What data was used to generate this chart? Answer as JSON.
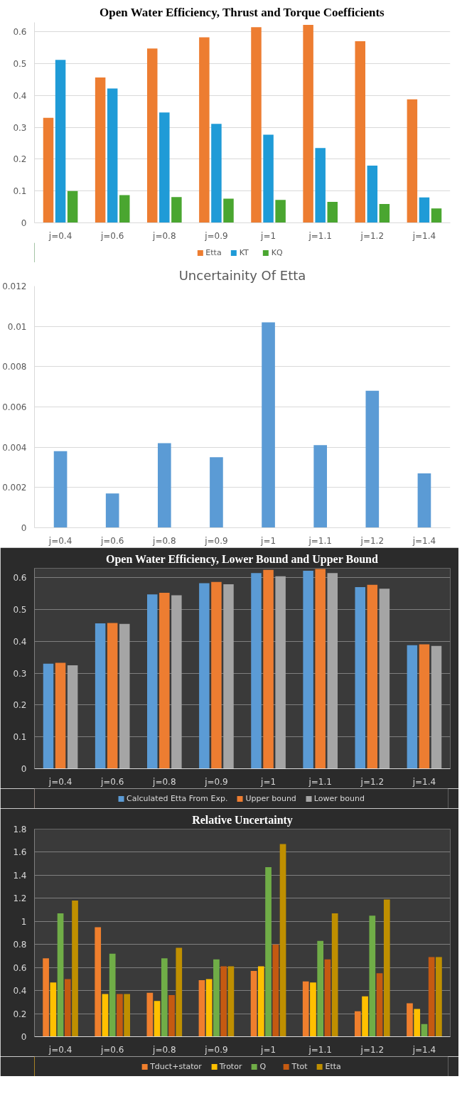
{
  "chart_data": [
    {
      "type": "bar",
      "title": "Open Water Efficiency, Thrust and Torque Coefficients",
      "categories": [
        "j=0.4",
        "j=0.6",
        "j=0.8",
        "j=0.9",
        "j=1",
        "j=1.1",
        "j=1.2",
        "j=1.4"
      ],
      "series": [
        {
          "name": "Etta",
          "color": "#ed7d31",
          "values": [
            0.33,
            0.457,
            0.548,
            0.583,
            0.615,
            0.622,
            0.571,
            0.388
          ]
        },
        {
          "name": "KT",
          "color": "#1f9bd7",
          "values": [
            0.512,
            0.422,
            0.347,
            0.311,
            0.277,
            0.235,
            0.18,
            0.08
          ]
        },
        {
          "name": "KQ",
          "color": "#4aa630",
          "values": [
            0.1,
            0.087,
            0.081,
            0.076,
            0.072,
            0.066,
            0.059,
            0.045
          ]
        }
      ],
      "ylim": [
        0,
        0.63
      ],
      "yticks": [
        0,
        0.1,
        0.2,
        0.3,
        0.4,
        0.5,
        0.6
      ],
      "grid": "y",
      "legend": "bottom"
    },
    {
      "type": "bar",
      "title": "Uncertainity Of Etta",
      "categories": [
        "j=0.4",
        "j=0.6",
        "j=0.8",
        "j=0.9",
        "j=1",
        "j=1.1",
        "j=1.2",
        "j=1.4"
      ],
      "series": [
        {
          "color": "#5b9bd5",
          "values": [
            0.0038,
            0.0017,
            0.0042,
            0.0035,
            0.0102,
            0.0041,
            0.0068,
            0.0027
          ]
        }
      ],
      "ylim": [
        0,
        0.012
      ],
      "yticks": [
        0,
        0.002,
        0.004,
        0.006,
        0.008,
        0.01,
        0.012
      ],
      "grid": "y"
    },
    {
      "type": "bar",
      "title": "Open Water Efficiency, Lower Bound and Upper Bound",
      "categories": [
        "j=0.4",
        "j=0.6",
        "j=0.8",
        "j=0.9",
        "j=1",
        "j=1.1",
        "j=1.2",
        "j=1.4"
      ],
      "series": [
        {
          "name": "Calculated Etta From Exp.",
          "color": "#5b9bd5",
          "values": [
            0.33,
            0.457,
            0.548,
            0.583,
            0.615,
            0.622,
            0.571,
            0.388
          ]
        },
        {
          "name": "Upper bound",
          "color": "#ed7d31",
          "values": [
            0.333,
            0.458,
            0.553,
            0.587,
            0.625,
            0.628,
            0.578,
            0.391
          ]
        },
        {
          "name": "Lower bound",
          "color": "#a5a5a5",
          "values": [
            0.325,
            0.455,
            0.545,
            0.58,
            0.605,
            0.615,
            0.566,
            0.386
          ]
        }
      ],
      "ylim": [
        0,
        0.63
      ],
      "yticks": [
        0,
        0.1,
        0.2,
        0.3,
        0.4,
        0.5,
        0.6
      ],
      "grid": "y",
      "legend": "bottom"
    },
    {
      "type": "bar",
      "title": "Relative Uncertainty",
      "categories": [
        "j=0.4",
        "j=0.6",
        "j=0.8",
        "j=0.9",
        "j=1",
        "j=1.1",
        "j=1.2",
        "j=1.4"
      ],
      "series": [
        {
          "name": "Tduct+stator",
          "color": "#f07f2d",
          "values": [
            0.68,
            0.95,
            0.38,
            0.49,
            0.57,
            0.48,
            0.22,
            0.29
          ]
        },
        {
          "name": "Trotor",
          "color": "#ffc000",
          "values": [
            0.47,
            0.37,
            0.31,
            0.5,
            0.61,
            0.47,
            0.35,
            0.24
          ]
        },
        {
          "name": "Q",
          "color": "#70ad47",
          "values": [
            1.07,
            0.72,
            0.68,
            0.67,
            1.47,
            0.83,
            1.05,
            0.11
          ]
        },
        {
          "name": "Ttot",
          "color": "#c55a11",
          "values": [
            0.5,
            0.37,
            0.36,
            0.61,
            0.8,
            0.67,
            0.55,
            0.69
          ]
        },
        {
          "name": "Etta",
          "color": "#bf8f00",
          "values": [
            1.18,
            0.37,
            0.77,
            0.61,
            1.67,
            1.07,
            1.19,
            0.69
          ]
        }
      ],
      "ylim": [
        0,
        1.8
      ],
      "yticks": [
        0,
        0.2,
        0.4,
        0.6,
        0.8,
        1,
        1.2,
        1.4,
        1.6,
        1.8
      ],
      "grid": "y",
      "legend": "bottom"
    }
  ]
}
